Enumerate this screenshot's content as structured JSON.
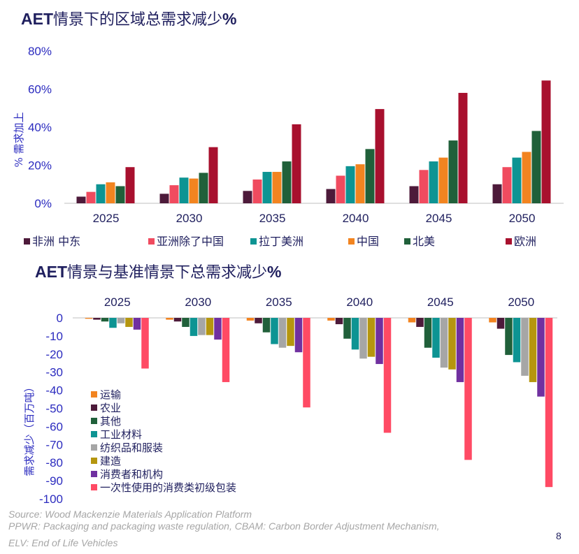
{
  "chart_data": [
    {
      "type": "bar",
      "title_prefix": "AET",
      "title_main": "情景下的区域总需求减少",
      "title_suffix": "%",
      "ylabel": "% 需求加上",
      "ylim": [
        0,
        80
      ],
      "yticks": [
        "0%",
        "20%",
        "40%",
        "60%",
        "80%"
      ],
      "categories": [
        "2025",
        "2030",
        "2035",
        "2040",
        "2045",
        "2050"
      ],
      "series": [
        {
          "name": "非洲 中东",
          "color": "#4d1a3a",
          "values": [
            3.5,
            5,
            6.5,
            7.5,
            9,
            10
          ]
        },
        {
          "name": "亚洲除了中国",
          "color": "#f04b5f",
          "values": [
            6,
            9.5,
            12.5,
            14.5,
            17.5,
            19
          ]
        },
        {
          "name": "拉丁美洲",
          "color": "#0d9493",
          "values": [
            10,
            13.5,
            16.5,
            19.5,
            22,
            24
          ]
        },
        {
          "name": "中国",
          "color": "#f28420",
          "values": [
            11,
            13,
            16.5,
            20.5,
            24,
            27
          ]
        },
        {
          "name": "北美",
          "color": "#20603a",
          "values": [
            9,
            16,
            22,
            28.5,
            33,
            38
          ]
        },
        {
          "name": "欧洲",
          "color": "#a8102e",
          "values": [
            19,
            29.5,
            41.5,
            49.5,
            58,
            64.5
          ]
        }
      ],
      "grid": false,
      "legend_position": "bottom"
    },
    {
      "type": "bar",
      "title_prefix": "AET",
      "title_main": "情景与基准情景下总需求减少",
      "title_suffix": "%",
      "ylabel": "需求减少（百万吨）",
      "ylim": [
        -100,
        0
      ],
      "yticks": [
        "0",
        "-10",
        "-20",
        "-30",
        "-40",
        "-50",
        "-60",
        "-70",
        "-80",
        "-90",
        "-100"
      ],
      "categories": [
        "2025",
        "2030",
        "2035",
        "2040",
        "2045",
        "2050"
      ],
      "series": [
        {
          "name": "运输",
          "color": "#f28420",
          "values": [
            -0.5,
            -1,
            -1.5,
            -1.5,
            -2.5,
            -2.5
          ]
        },
        {
          "name": "农业",
          "color": "#4d1a3a",
          "values": [
            -1,
            -2,
            -3,
            -3.5,
            -5,
            -6
          ]
        },
        {
          "name": "其他",
          "color": "#20603a",
          "values": [
            -2,
            -5,
            -8,
            -11.5,
            -16.5,
            -20.5
          ]
        },
        {
          "name": "工业材料",
          "color": "#0d9493",
          "values": [
            -5.5,
            -10,
            -14.5,
            -17.5,
            -22,
            -24.5
          ]
        },
        {
          "name": "纺织品和服装",
          "color": "#a6a6a6",
          "values": [
            -3,
            -9.5,
            -16.5,
            -22.5,
            -27.5,
            -32
          ]
        },
        {
          "name": "建造",
          "color": "#b5960f",
          "values": [
            -5,
            -9.5,
            -15.5,
            -21.5,
            -28.5,
            -35.5
          ]
        },
        {
          "name": "消费者和机构",
          "color": "#7030a0",
          "values": [
            -6.5,
            -12,
            -19,
            -25.5,
            -35.5,
            -43.5
          ]
        },
        {
          "name": "一次性使用的消费类初级包装",
          "color": "#ff4a64",
          "values": [
            -28,
            -35.5,
            -49.5,
            -63.5,
            -78.5,
            -93.5
          ]
        }
      ],
      "grid": false,
      "legend_position": "left-inside"
    }
  ],
  "source": {
    "line1": "Source: Wood Mackenzie Materials Application Platform",
    "line2": "PPWR: Packaging and packaging waste regulation, CBAM: Carbon Border Adjustment Mechanism,",
    "line3": "ELV: End of Life Vehicles"
  },
  "page_number": "8",
  "colors": {
    "title": "#1f1f5e",
    "axis_text": "#1f1f5e",
    "axis_label": "#2b2bbf",
    "axis_line": "#bfbfbf"
  }
}
